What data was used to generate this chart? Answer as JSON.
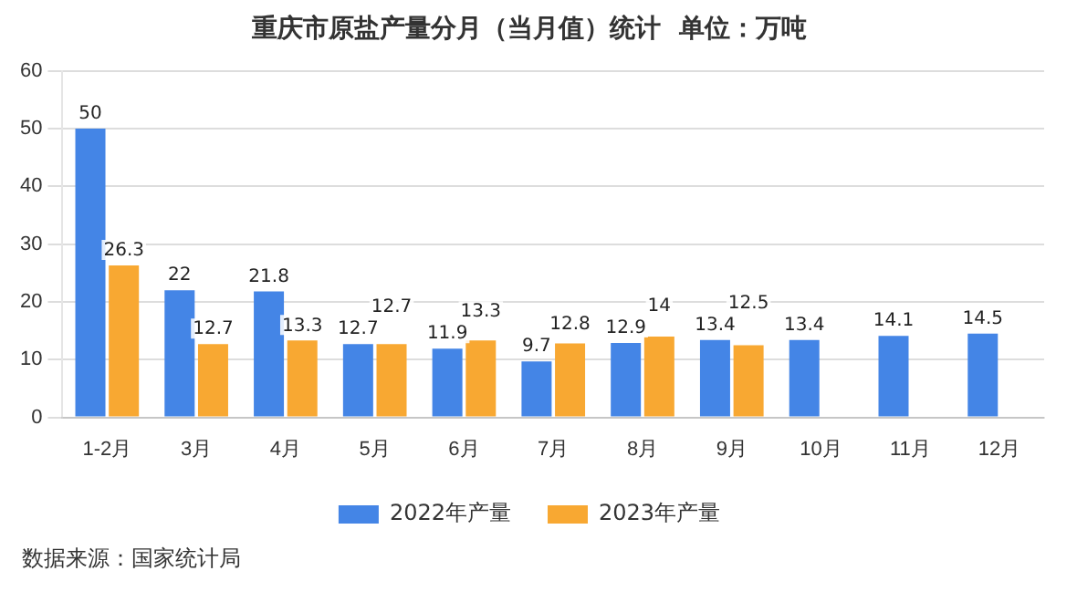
{
  "chart_data": {
    "type": "bar",
    "title": "重庆市原盐产量分月（当月值）统计  单位：万吨",
    "categories": [
      "1-2月",
      "3月",
      "4月",
      "5月",
      "6月",
      "7月",
      "8月",
      "9月",
      "10月",
      "11月",
      "12月"
    ],
    "series": [
      {
        "name": "2022年产量",
        "color": "#4485e6",
        "values": [
          50,
          22,
          21.8,
          12.7,
          11.9,
          9.7,
          12.9,
          13.4,
          13.4,
          14.1,
          14.5
        ]
      },
      {
        "name": "2023年产量",
        "color": "#f8a832",
        "values": [
          26.3,
          12.7,
          13.3,
          12.7,
          13.3,
          12.8,
          14,
          12.5,
          null,
          null,
          null
        ]
      }
    ],
    "ylim": [
      0,
      60
    ],
    "yticks": [
      0,
      10,
      20,
      30,
      40,
      50,
      60
    ],
    "grid": "y",
    "legend": "bottom",
    "data_labels": true,
    "annotations": [
      "数据来源：国家统计局"
    ]
  }
}
